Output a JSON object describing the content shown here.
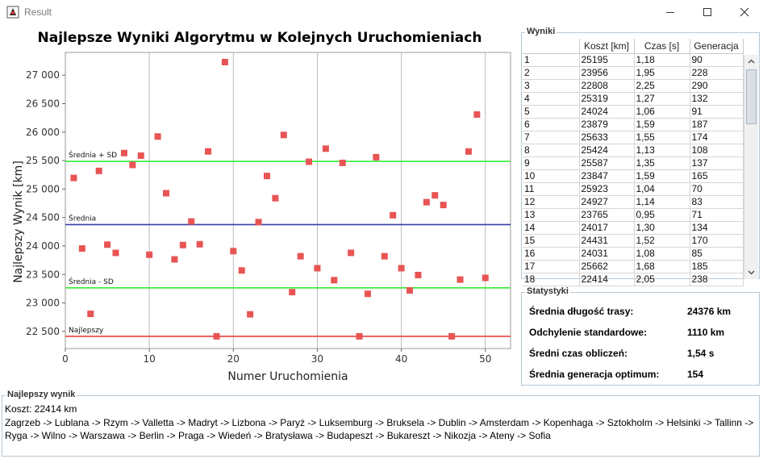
{
  "window": {
    "title": "Result",
    "app_icon": "java-duke-icon",
    "controls": [
      "minimize-icon",
      "maximize-icon",
      "close-icon"
    ]
  },
  "chart_data": {
    "type": "scatter",
    "title": "Najlepsze Wyniki Algorytmu w Kolejnych Uruchomieniach",
    "xlabel": "Numer Uruchomienia",
    "ylabel": "Najlepszy Wynik [km]",
    "xlim": [
      0,
      53
    ],
    "ylim": [
      22200,
      27400
    ],
    "xticks": [
      0,
      10,
      20,
      30,
      40,
      50
    ],
    "yticks": [
      22500,
      23000,
      23500,
      24000,
      24500,
      25000,
      25500,
      26000,
      26500,
      27000
    ],
    "ytick_labels": [
      "22 500",
      "23 000",
      "23 500",
      "24 000",
      "24 500",
      "25 000",
      "25 500",
      "26 000",
      "26 500",
      "27 000"
    ],
    "grid": "vertical",
    "marker_color": "#e85454",
    "series": [
      {
        "x": [
          1,
          2,
          3,
          4,
          5,
          6,
          7,
          8,
          9,
          10,
          11,
          12,
          13,
          14,
          15,
          16,
          17,
          18,
          19,
          20,
          21,
          22,
          23,
          24,
          25,
          26,
          27,
          28,
          29,
          30,
          31,
          32,
          33,
          34,
          35,
          36,
          37,
          38,
          39,
          40,
          41,
          42,
          43,
          44,
          45,
          46,
          47,
          48,
          49,
          50
        ],
        "y": [
          25195,
          23956,
          22808,
          25319,
          24024,
          23879,
          25633,
          25424,
          25587,
          23847,
          25923,
          24927,
          23765,
          24017,
          24431,
          24031,
          25662,
          22414,
          27230,
          23910,
          23570,
          22800,
          24420,
          25230,
          24840,
          25950,
          23190,
          23820,
          25480,
          23610,
          25710,
          23400,
          25460,
          23880,
          22414,
          23160,
          25560,
          23820,
          24540,
          23610,
          23220,
          23490,
          24770,
          24890,
          24720,
          22414,
          23410,
          25660,
          26310,
          23440
        ]
      }
    ],
    "reference_lines": [
      {
        "label": "Średnia + SD",
        "value": 25486,
        "color": "#33ee33"
      },
      {
        "label": "Średnia",
        "value": 24376,
        "color": "#3a3aa8"
      },
      {
        "label": "Średnia - SD",
        "value": 23266,
        "color": "#33ee33"
      },
      {
        "label": "Najlepszy",
        "value": 22414,
        "color": "#e84040"
      }
    ]
  },
  "results": {
    "title": "Wyniki",
    "columns": [
      "",
      "Koszt [km]",
      "Czas [s]",
      "Generacja"
    ],
    "rows": [
      [
        "1",
        "25195",
        "1,18",
        "90"
      ],
      [
        "2",
        "23956",
        "1,95",
        "228"
      ],
      [
        "3",
        "22808",
        "2,25",
        "290"
      ],
      [
        "4",
        "25319",
        "1,27",
        "132"
      ],
      [
        "5",
        "24024",
        "1,06",
        "91"
      ],
      [
        "6",
        "23879",
        "1,59",
        "187"
      ],
      [
        "7",
        "25633",
        "1,55",
        "174"
      ],
      [
        "8",
        "25424",
        "1,13",
        "108"
      ],
      [
        "9",
        "25587",
        "1,35",
        "137"
      ],
      [
        "10",
        "23847",
        "1,59",
        "165"
      ],
      [
        "11",
        "25923",
        "1,04",
        "70"
      ],
      [
        "12",
        "24927",
        "1,14",
        "83"
      ],
      [
        "13",
        "23765",
        "0,95",
        "71"
      ],
      [
        "14",
        "24017",
        "1,30",
        "134"
      ],
      [
        "15",
        "24431",
        "1,52",
        "170"
      ],
      [
        "16",
        "24031",
        "1,08",
        "85"
      ],
      [
        "17",
        "25662",
        "1,68",
        "185"
      ],
      [
        "18",
        "22414",
        "2,05",
        "238"
      ]
    ],
    "scroll_fraction": 0.0
  },
  "stats": {
    "title": "Statystyki",
    "items": [
      {
        "label": "Średnia długość trasy:",
        "value": "24376 km"
      },
      {
        "label": "Odchylenie standardowe:",
        "value": "1110 km"
      },
      {
        "label": "Średni czas obliczeń:",
        "value": "1,54 s"
      },
      {
        "label": "Średnia generacja optimum:",
        "value": "154"
      }
    ]
  },
  "best": {
    "title": "Najlepszy wynik",
    "cost": "Koszt: 22414 km",
    "route": "Zagrzeb -> Lublana -> Rzym -> Valletta -> Madryt -> Lizbona -> Paryż -> Luksemburg -> Bruksela -> Dublin -> Amsterdam -> Kopenhaga -> Sztokholm -> Helsinki -> Tallinn -> Ryga -> Wilno -> Warszawa -> Berlin -> Praga -> Wiedeń -> Bratysława -> Budapeszt -> Bukareszt -> Nikozja -> Ateny -> Sofia"
  }
}
